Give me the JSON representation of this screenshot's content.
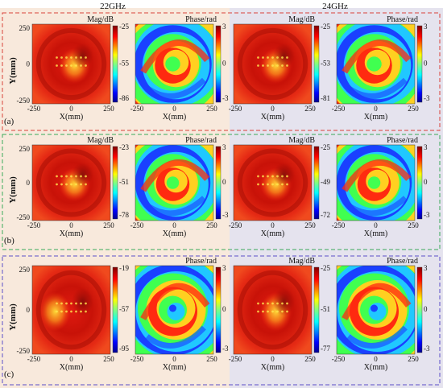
{
  "columns": {
    "left": {
      "frequency": "22GHz",
      "background": "#f8e9dc"
    },
    "right": {
      "frequency": "24GHz",
      "background": "#e5e3ee"
    }
  },
  "rows": [
    {
      "label": "(a)",
      "frame_color": "#d9423a",
      "panels": [
        {
          "id": "a-22-mag",
          "kind": "mag",
          "title": "Mag/dB",
          "ticks": [
            "-25",
            "-55",
            "-86"
          ]
        },
        {
          "id": "a-22-phase",
          "kind": "phase",
          "title": "Phase/rad",
          "ticks": [
            "3",
            "0",
            "-3"
          ]
        },
        {
          "id": "a-24-mag",
          "kind": "mag",
          "title": "Mag/dB",
          "ticks": [
            "-25",
            "-53",
            "-81"
          ]
        },
        {
          "id": "a-24-phase",
          "kind": "phase",
          "title": "Phase/rad",
          "ticks": [
            "3",
            "0",
            "-3"
          ]
        }
      ]
    },
    {
      "label": "(b)",
      "frame_color": "#3aaa5a",
      "panels": [
        {
          "id": "b-22-mag",
          "kind": "mag",
          "title": "Mag/dB",
          "ticks": [
            "-23",
            "-51",
            "-78"
          ]
        },
        {
          "id": "b-22-phase",
          "kind": "phase",
          "title": "Phase/rad",
          "ticks": [
            "3",
            "0",
            "-3"
          ]
        },
        {
          "id": "b-24-mag",
          "kind": "mag",
          "title": "Mag/dB",
          "ticks": [
            "-25",
            "-49",
            "-72"
          ]
        },
        {
          "id": "b-24-phase",
          "kind": "phase",
          "title": "Phase/rad",
          "ticks": [
            "3",
            "0",
            "-3"
          ]
        }
      ]
    },
    {
      "label": "(c)",
      "frame_color": "#5a4fc8",
      "panels": [
        {
          "id": "c-22-mag",
          "kind": "mag",
          "title": "",
          "ticks": [
            "-19",
            "-57",
            "-95"
          ]
        },
        {
          "id": "c-22-phase",
          "kind": "phase",
          "title": "Phase/rad",
          "ticks": [
            "3",
            "0",
            "-3"
          ]
        },
        {
          "id": "c-24-mag",
          "kind": "mag",
          "title": "Mag/dB",
          "ticks": [
            "-25",
            "-51",
            "-77"
          ]
        },
        {
          "id": "c-24-phase",
          "kind": "phase",
          "title": "Phase/rad",
          "ticks": [
            "3",
            "0",
            "-3"
          ]
        }
      ]
    }
  ],
  "axes": {
    "ylabel": "Y(mm)",
    "xlabel": "X(mm)",
    "x_ticks": [
      "-250",
      "0",
      "250"
    ],
    "y_ticks": [
      "250",
      "0",
      "-250"
    ]
  }
}
